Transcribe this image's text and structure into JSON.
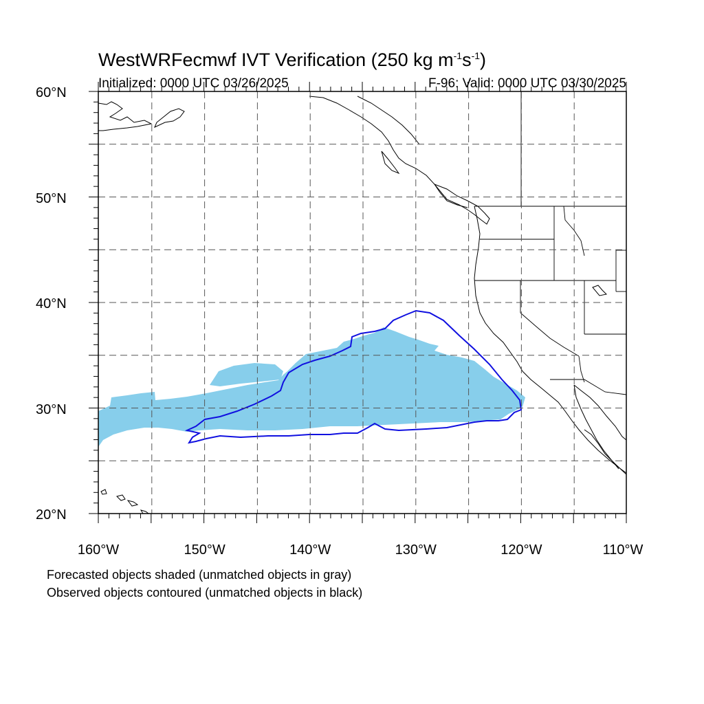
{
  "header": {
    "title_main": "WestWRFecmwf IVT Verification (250 kg m",
    "title_sup1": "-1",
    "title_mid": "s",
    "title_sup2": "-1",
    "title_end": ")",
    "initialized": "Initialized: 0000 UTC 03/26/2025",
    "valid": "F-96: Valid: 0000 UTC 03/30/2025"
  },
  "axes": {
    "lat_labels": [
      "60°N",
      "50°N",
      "40°N",
      "30°N",
      "20°N"
    ],
    "lon_labels": [
      "160°W",
      "150°W",
      "140°W",
      "130°W",
      "120°W",
      "110°W"
    ],
    "lat_range": [
      20,
      60
    ],
    "lon_range": [
      -160,
      -110
    ],
    "grid": "dashed, every 5°"
  },
  "legend": {
    "line1": "Forecasted objects shaded (unmatched objects in gray)",
    "line2": "Observed objects contoured (unmatched objects in black)"
  },
  "colors": {
    "forecast_fill": "#87ceeb",
    "observed_contour": "#1010e0",
    "coastline": "#000000",
    "grid": "#555555"
  }
}
